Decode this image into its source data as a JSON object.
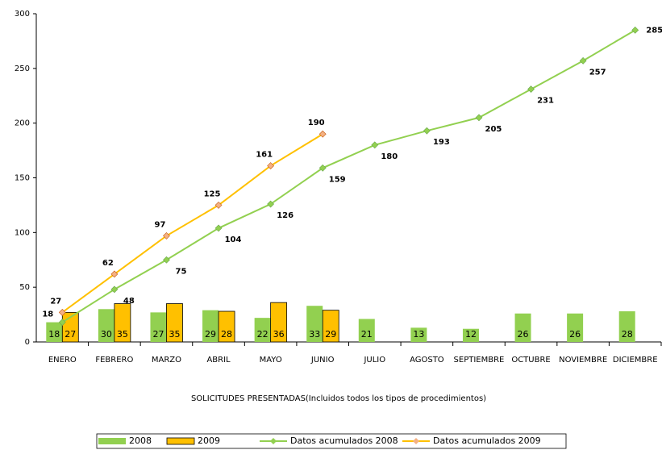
{
  "chart_data": {
    "type": "combo",
    "x_label": "SOLICITUDES PRESENTADAS(Incluidos  todos los tipos de procedimientos)",
    "categories": [
      "ENERO",
      "FEBRERO",
      "MARZO",
      "ABRIL",
      "MAYO",
      "JUNIO",
      "JULIO",
      "AGOSTO",
      "SEPTIEMBRE",
      "OCTUBRE",
      "NOVIEMBRE",
      "DICIEMBRE"
    ],
    "ylim": [
      0,
      300
    ],
    "yticks": [
      0,
      50,
      100,
      150,
      200,
      250,
      300
    ],
    "grid": false,
    "legend": "bottom",
    "series": [
      {
        "name": "2008",
        "type": "bar",
        "color": "#92d050",
        "values": [
          18,
          30,
          27,
          29,
          22,
          33,
          21,
          13,
          12,
          26,
          26,
          28
        ]
      },
      {
        "name": "2009",
        "type": "bar",
        "color": "#ffc000",
        "values": [
          27,
          35,
          35,
          28,
          36,
          29,
          null,
          null,
          null,
          null,
          null,
          null
        ]
      },
      {
        "name": "Datos acumulados 2008",
        "type": "line",
        "color": "#92d050",
        "values": [
          18,
          48,
          75,
          104,
          126,
          159,
          180,
          193,
          205,
          231,
          257,
          285
        ]
      },
      {
        "name": "Datos acumulados 2009",
        "type": "line",
        "color": "#ffc000",
        "marker_color": "#f4b183",
        "values": [
          27,
          62,
          97,
          125,
          161,
          190,
          null,
          null,
          null,
          null,
          null,
          null
        ]
      }
    ]
  }
}
